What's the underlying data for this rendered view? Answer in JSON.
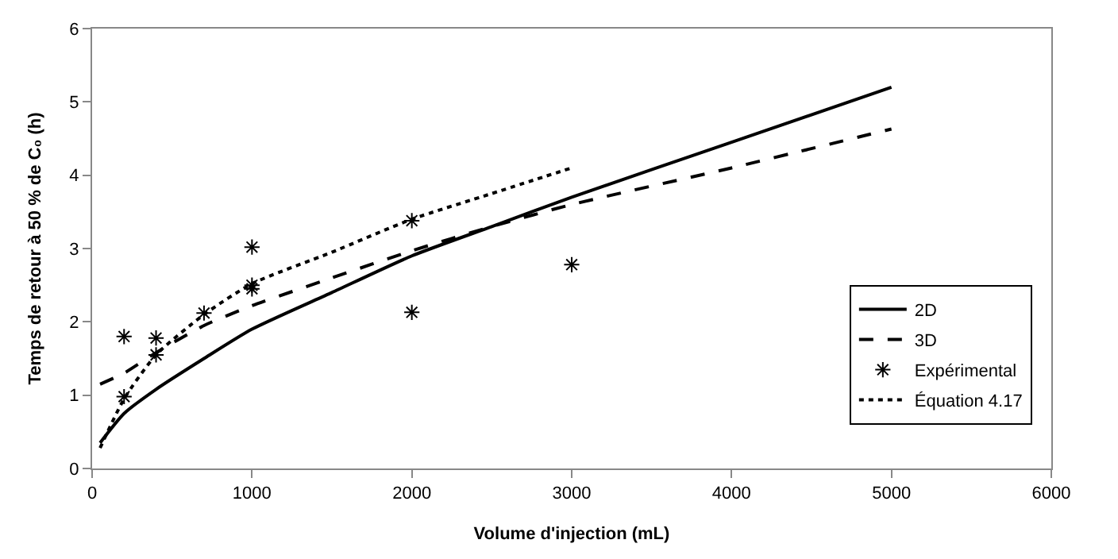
{
  "chart_data": {
    "type": "line",
    "xlabel": "Volume d'injection (mL)",
    "ylabel": "Temps de retour à 50 % de C₀ (h)",
    "xlim": [
      0,
      6000
    ],
    "xticks": [
      0,
      1000,
      2000,
      3000,
      4000,
      5000,
      6000
    ],
    "ylim": [
      0,
      6
    ],
    "yticks": [
      0,
      1,
      2,
      3,
      4,
      5,
      6
    ],
    "legend": "bottom right",
    "series": [
      {
        "name": "2D",
        "color": "#000000",
        "line_style": "solid",
        "x": [
          50,
          200,
          400,
          700,
          1000,
          1500,
          2000,
          2500,
          3000,
          4000,
          5000
        ],
        "values": [
          0.35,
          0.75,
          1.08,
          1.5,
          1.9,
          2.4,
          2.9,
          3.3,
          3.7,
          4.45,
          5.2
        ]
      },
      {
        "name": "3D",
        "color": "#000000",
        "line_style": "dashed",
        "x": [
          50,
          200,
          400,
          700,
          1000,
          1500,
          2000,
          2500,
          3000,
          4000,
          5000
        ],
        "values": [
          1.15,
          1.3,
          1.58,
          1.95,
          2.22,
          2.6,
          2.97,
          3.3,
          3.6,
          4.1,
          4.63
        ]
      },
      {
        "name": "Expérimental",
        "type": "scatter",
        "marker": "cross",
        "color": "#000000",
        "x": [
          200,
          200,
          400,
          400,
          700,
          1000,
          1000,
          1000,
          2000,
          2000,
          3000
        ],
        "values": [
          1.8,
          0.98,
          1.78,
          1.55,
          2.12,
          3.02,
          2.5,
          2.45,
          3.38,
          2.13,
          2.78
        ]
      },
      {
        "name": "Équation 4.17",
        "color": "#000000",
        "line_style": "dotted",
        "x": [
          50,
          200,
          400,
          700,
          1000,
          1500,
          2000,
          2500,
          3000
        ],
        "values": [
          0.28,
          0.95,
          1.55,
          2.1,
          2.52,
          2.95,
          3.4,
          3.75,
          4.1
        ]
      }
    ]
  }
}
